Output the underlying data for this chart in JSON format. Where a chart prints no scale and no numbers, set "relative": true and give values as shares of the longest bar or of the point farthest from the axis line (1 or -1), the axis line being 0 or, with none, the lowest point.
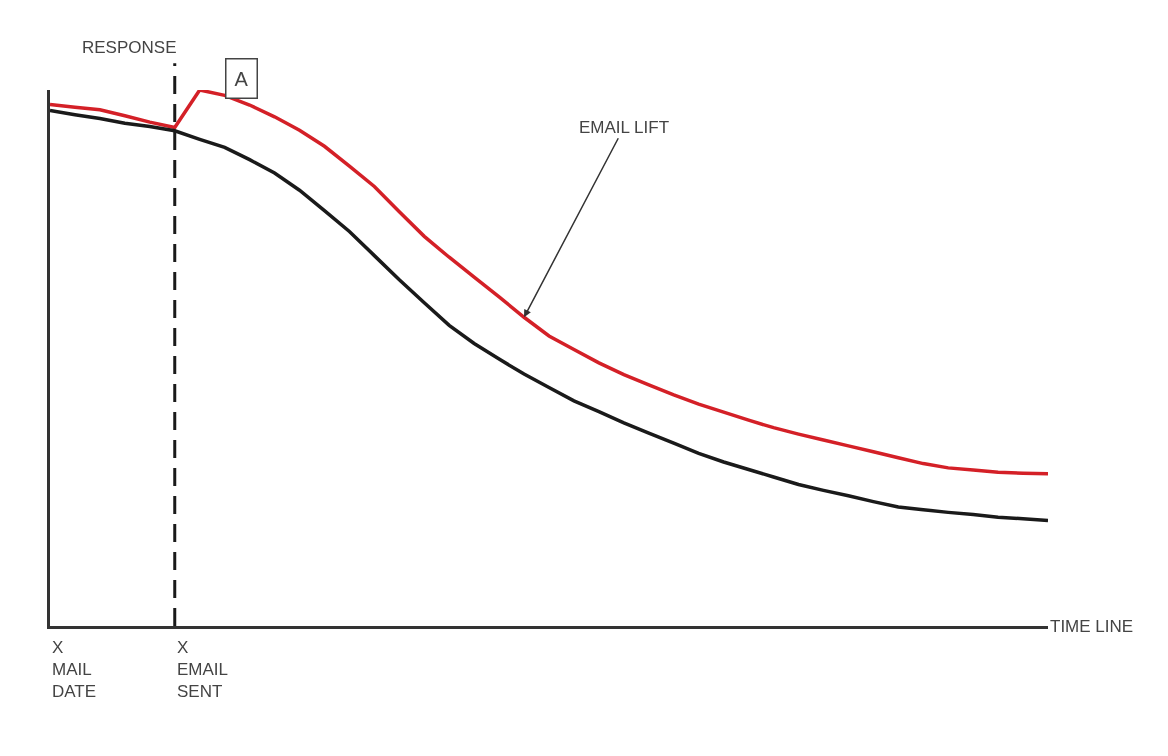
{
  "chart_data": {
    "type": "line",
    "relative": true,
    "ylabel": "RESPONSE",
    "xlabel": "TIME LINE",
    "categories": [
      null,
      null,
      null,
      null,
      null,
      null,
      null,
      null,
      null,
      null,
      null,
      null,
      null,
      null,
      null,
      null,
      null,
      null,
      null,
      null,
      null,
      null,
      null,
      null,
      null,
      null,
      null,
      null,
      null,
      null,
      null,
      null,
      null,
      null,
      null,
      null,
      null,
      null,
      null,
      null,
      null
    ],
    "marker": "none",
    "line_style": "solid",
    "series": [
      {
        "color": "#d42027",
        "values": [
          0.973,
          0.968,
          0.963,
          0.952,
          0.94,
          0.93,
          1.0,
          0.99,
          0.972,
          0.95,
          0.925,
          0.895,
          0.858,
          0.82,
          0.773,
          0.727,
          0.688,
          0.651,
          0.614,
          0.576,
          0.541,
          0.516,
          0.491,
          0.469,
          0.45,
          0.431,
          0.414,
          0.399,
          0.384,
          0.37,
          0.358,
          0.347,
          0.336,
          0.325,
          0.314,
          0.303,
          0.295,
          0.291,
          0.287,
          0.285,
          0.284
        ]
      },
      {
        "color": "#1a1a1a",
        "values": [
          0.962,
          0.954,
          0.947,
          0.938,
          0.932,
          0.924,
          0.908,
          0.893,
          0.87,
          0.845,
          0.813,
          0.775,
          0.736,
          0.691,
          0.646,
          0.603,
          0.561,
          0.527,
          0.498,
          0.47,
          0.445,
          0.42,
          0.4,
          0.379,
          0.36,
          0.341,
          0.322,
          0.306,
          0.292,
          0.278,
          0.264,
          0.253,
          0.243,
          0.232,
          0.222,
          0.217,
          0.212,
          0.208,
          0.203,
          0.2,
          0.197
        ]
      }
    ],
    "ref_lines": [
      {
        "axis": "x",
        "color": "#1a1a1a",
        "line_style": "dashed"
      }
    ],
    "annotations": [
      "A",
      "EMAIL LIFT",
      "X\nMAIL\nDATE",
      "X\nEMAIL\nSENT"
    ]
  }
}
